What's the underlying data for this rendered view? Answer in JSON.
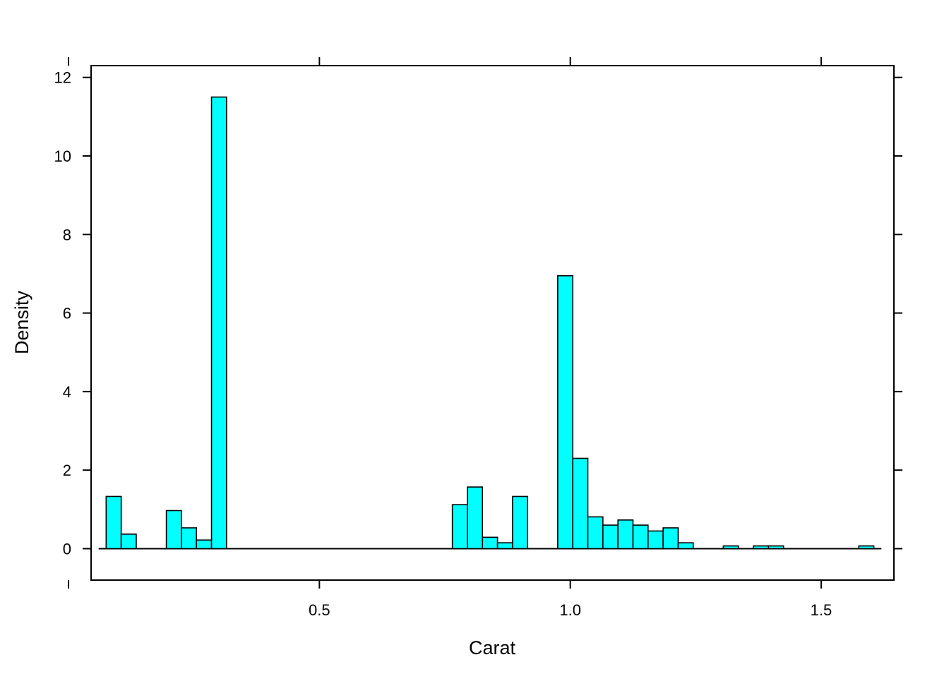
{
  "chart_data": {
    "type": "bar",
    "xlabel": "Carat",
    "ylabel": "Density",
    "xlim": [
      0.045,
      1.645
    ],
    "ylim": [
      -0.8,
      12.3
    ],
    "x_ticks": [
      0.5,
      1.0,
      1.5
    ],
    "x_tick_labels": [
      "0.5",
      "1.0",
      "1.5"
    ],
    "x_extra_tick_marks": [
      0.0
    ],
    "y_ticks": [
      0,
      2,
      4,
      6,
      8,
      10,
      12
    ],
    "y_tick_labels": [
      "0",
      "2",
      "4",
      "6",
      "8",
      "10",
      "12"
    ],
    "grid": false,
    "bar_fill": "#00ffff",
    "bar_stroke": "#000000",
    "baseline": {
      "from": 0.06,
      "to": 1.62
    },
    "bins": [
      {
        "x0": 0.075,
        "x1": 0.105,
        "density": 1.33
      },
      {
        "x0": 0.105,
        "x1": 0.135,
        "density": 0.37
      },
      {
        "x0": 0.135,
        "x1": 0.165,
        "density": 0.0
      },
      {
        "x0": 0.165,
        "x1": 0.195,
        "density": 0.0
      },
      {
        "x0": 0.195,
        "x1": 0.225,
        "density": 0.97
      },
      {
        "x0": 0.225,
        "x1": 0.255,
        "density": 0.53
      },
      {
        "x0": 0.255,
        "x1": 0.285,
        "density": 0.22
      },
      {
        "x0": 0.285,
        "x1": 0.315,
        "density": 11.5
      },
      {
        "x0": 0.765,
        "x1": 0.795,
        "density": 1.12
      },
      {
        "x0": 0.795,
        "x1": 0.825,
        "density": 1.57
      },
      {
        "x0": 0.825,
        "x1": 0.855,
        "density": 0.29
      },
      {
        "x0": 0.855,
        "x1": 0.885,
        "density": 0.15
      },
      {
        "x0": 0.885,
        "x1": 0.915,
        "density": 1.33
      },
      {
        "x0": 0.915,
        "x1": 0.945,
        "density": 0.0
      },
      {
        "x0": 0.945,
        "x1": 0.975,
        "density": 0.0
      },
      {
        "x0": 0.975,
        "x1": 1.005,
        "density": 6.95
      },
      {
        "x0": 1.005,
        "x1": 1.035,
        "density": 2.3
      },
      {
        "x0": 1.035,
        "x1": 1.065,
        "density": 0.81
      },
      {
        "x0": 1.065,
        "x1": 1.095,
        "density": 0.6
      },
      {
        "x0": 1.095,
        "x1": 1.125,
        "density": 0.73
      },
      {
        "x0": 1.125,
        "x1": 1.155,
        "density": 0.6
      },
      {
        "x0": 1.155,
        "x1": 1.185,
        "density": 0.45
      },
      {
        "x0": 1.185,
        "x1": 1.215,
        "density": 0.53
      },
      {
        "x0": 1.215,
        "x1": 1.245,
        "density": 0.15
      },
      {
        "x0": 1.305,
        "x1": 1.335,
        "density": 0.07
      },
      {
        "x0": 1.365,
        "x1": 1.395,
        "density": 0.07
      },
      {
        "x0": 1.395,
        "x1": 1.425,
        "density": 0.07
      },
      {
        "x0": 1.575,
        "x1": 1.605,
        "density": 0.07
      }
    ]
  }
}
